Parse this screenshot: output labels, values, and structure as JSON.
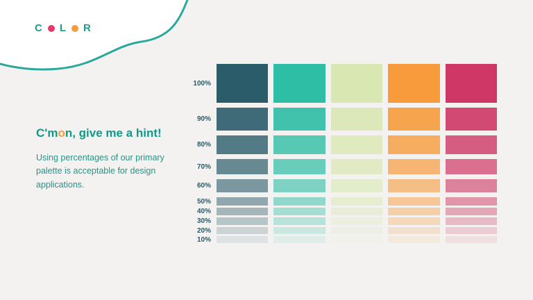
{
  "page": {
    "background": "#f3f2f0",
    "accent_teal": "#1f9e8e"
  },
  "logo": {
    "letter_c": "C",
    "letter_l": "L",
    "letter_r": "R",
    "dot1_color": "#e8396f",
    "dot2_color": "#f59b3d",
    "text_color": "#1f9e8e"
  },
  "intro": {
    "heading_part1": "C'm",
    "heading_accent": "o",
    "heading_part2": "n, give me a hint!",
    "body": "Using percentages of our primary palette is acceptable for design applications."
  },
  "palette": {
    "columns": [
      {
        "name": "dark-teal",
        "hex": "#2b5c6a"
      },
      {
        "name": "teal-green",
        "hex": "#2ebda5"
      },
      {
        "name": "light-green",
        "hex": "#d9e7b2"
      },
      {
        "name": "orange",
        "hex": "#f79b3c"
      },
      {
        "name": "pink",
        "hex": "#ce3766"
      }
    ],
    "rows": [
      {
        "label": "100%",
        "opacity": 1.0,
        "height": 56
      },
      {
        "label": "90%",
        "opacity": 0.9,
        "height": 33
      },
      {
        "label": "80%",
        "opacity": 0.8,
        "height": 27
      },
      {
        "label": "70%",
        "opacity": 0.7,
        "height": 22
      },
      {
        "label": "60%",
        "opacity": 0.6,
        "height": 19
      },
      {
        "label": "50%",
        "opacity": 0.5,
        "height": 12
      },
      {
        "label": "40%",
        "opacity": 0.4,
        "height": 11
      },
      {
        "label": "30%",
        "opacity": 0.3,
        "height": 11
      },
      {
        "label": "20%",
        "opacity": 0.2,
        "height": 10
      },
      {
        "label": "10%",
        "opacity": 0.1,
        "height": 10
      }
    ]
  }
}
